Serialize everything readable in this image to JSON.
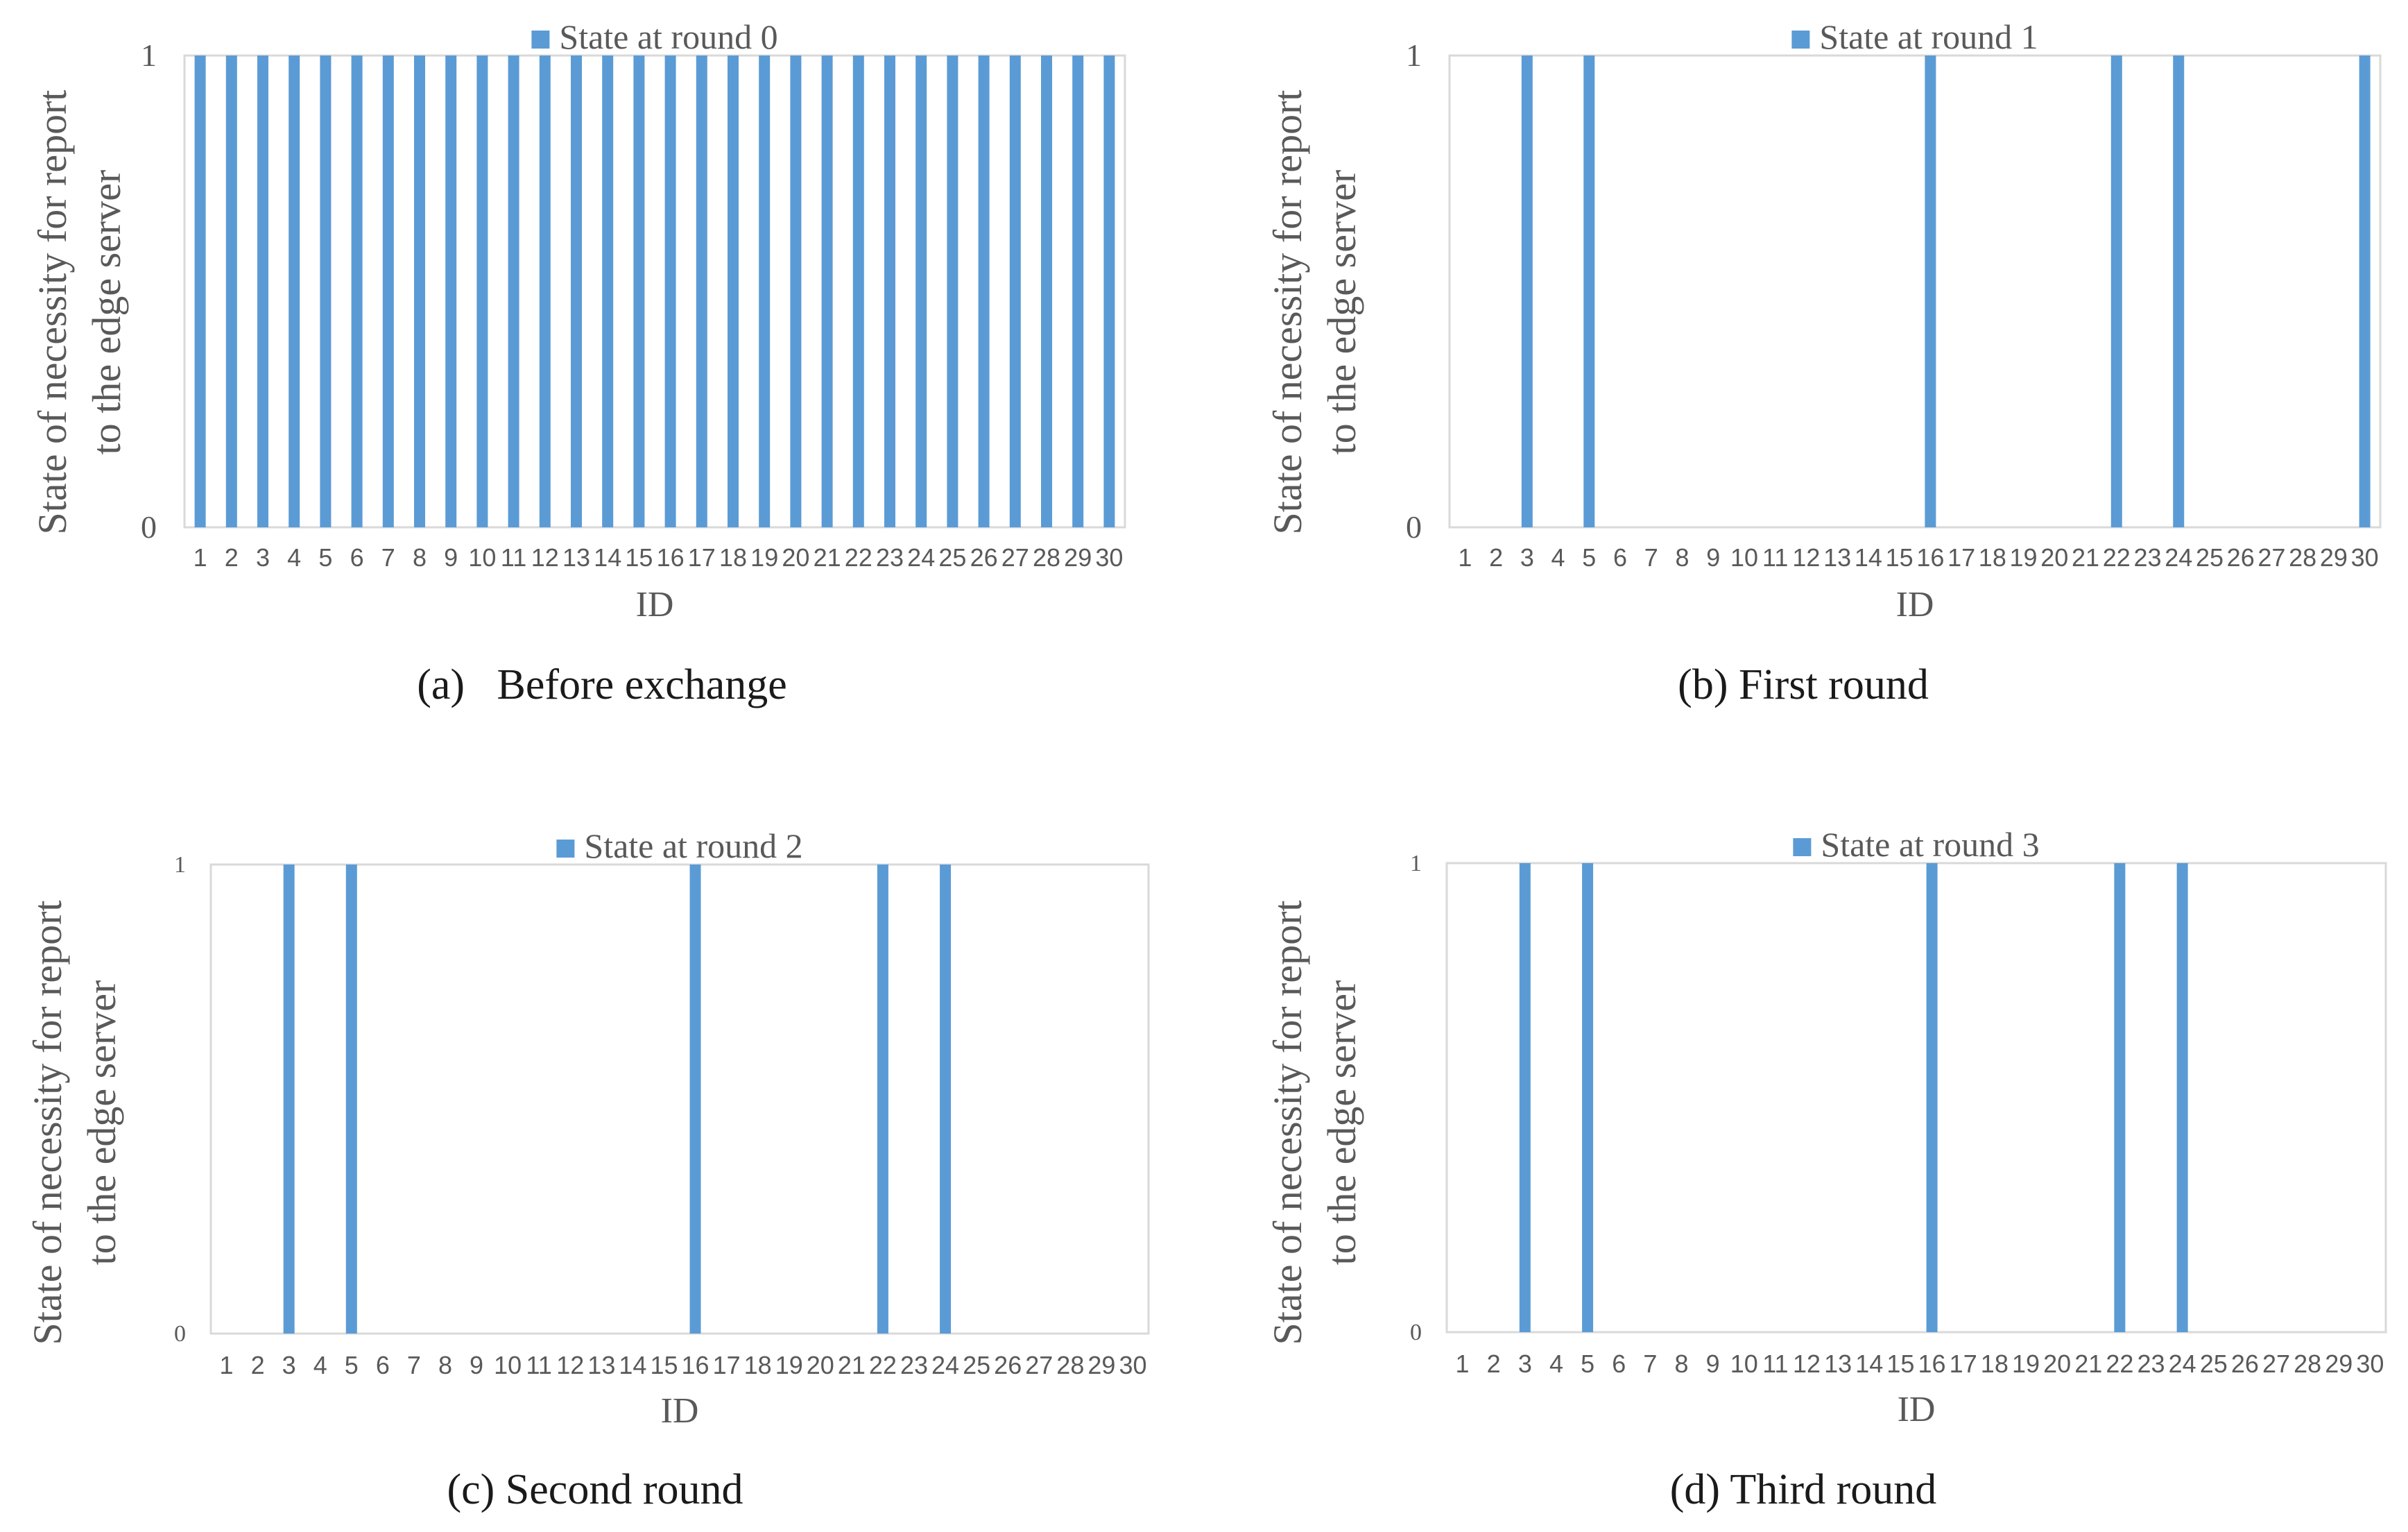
{
  "figure": {
    "bar_color": "#5b9bd5",
    "axis_color": "#d9d9d9",
    "text_color": "#595959",
    "caption_color": "#1a1a1a"
  },
  "chart_data": [
    {
      "type": "bar",
      "legend": "State at round 0",
      "legend_position": "top-center",
      "xlabel": "ID",
      "ylabel_lines": [
        "State of necessity for report",
        "to the edge server"
      ],
      "yticks": [
        "0",
        "1"
      ],
      "ylim": [
        0,
        1
      ],
      "categories": [
        "1",
        "2",
        "3",
        "4",
        "5",
        "6",
        "7",
        "8",
        "9",
        "10",
        "11",
        "12",
        "13",
        "14",
        "15",
        "16",
        "17",
        "18",
        "19",
        "20",
        "21",
        "22",
        "23",
        "24",
        "25",
        "26",
        "27",
        "28",
        "29",
        "30"
      ],
      "values": [
        1,
        1,
        1,
        1,
        1,
        1,
        1,
        1,
        1,
        1,
        1,
        1,
        1,
        1,
        1,
        1,
        1,
        1,
        1,
        1,
        1,
        1,
        1,
        1,
        1,
        1,
        1,
        1,
        1,
        1
      ],
      "caption": "(a)   Before exchange"
    },
    {
      "type": "bar",
      "legend": "State at round 1",
      "legend_position": "top-center",
      "xlabel": "ID",
      "ylabel_lines": [
        "State of necessity for report",
        "to the edge server"
      ],
      "yticks": [
        "0",
        "1"
      ],
      "ylim": [
        0,
        1
      ],
      "categories": [
        "1",
        "2",
        "3",
        "4",
        "5",
        "6",
        "7",
        "8",
        "9",
        "10",
        "11",
        "12",
        "13",
        "14",
        "15",
        "16",
        "17",
        "18",
        "19",
        "20",
        "21",
        "22",
        "23",
        "24",
        "25",
        "26",
        "27",
        "28",
        "29",
        "30"
      ],
      "values": [
        0,
        0,
        1,
        0,
        1,
        0,
        0,
        0,
        0,
        0,
        0,
        0,
        0,
        0,
        0,
        1,
        0,
        0,
        0,
        0,
        0,
        1,
        0,
        1,
        0,
        0,
        0,
        0,
        0,
        1
      ],
      "caption": "(b) First round"
    },
    {
      "type": "bar",
      "legend": "State at round 2",
      "legend_position": "top-center",
      "xlabel": "ID",
      "ylabel_lines": [
        "State of necessity for report",
        "to the edge server"
      ],
      "yticks": [
        "0",
        "1"
      ],
      "ylim": [
        0,
        1
      ],
      "categories": [
        "1",
        "2",
        "3",
        "4",
        "5",
        "6",
        "7",
        "8",
        "9",
        "10",
        "11",
        "12",
        "13",
        "14",
        "15",
        "16",
        "17",
        "18",
        "19",
        "20",
        "21",
        "22",
        "23",
        "24",
        "25",
        "26",
        "27",
        "28",
        "29",
        "30"
      ],
      "values": [
        0,
        0,
        1,
        0,
        1,
        0,
        0,
        0,
        0,
        0,
        0,
        0,
        0,
        0,
        0,
        1,
        0,
        0,
        0,
        0,
        0,
        1,
        0,
        1,
        0,
        0,
        0,
        0,
        0,
        0
      ],
      "caption": "(c) Second round"
    },
    {
      "type": "bar",
      "legend": "State at round 3",
      "legend_position": "top-center",
      "xlabel": "ID",
      "ylabel_lines": [
        "State of necessity for report",
        "to the edge server"
      ],
      "yticks": [
        "0",
        "1"
      ],
      "ylim": [
        0,
        1
      ],
      "categories": [
        "1",
        "2",
        "3",
        "4",
        "5",
        "6",
        "7",
        "8",
        "9",
        "10",
        "11",
        "12",
        "13",
        "14",
        "15",
        "16",
        "17",
        "18",
        "19",
        "20",
        "21",
        "22",
        "23",
        "24",
        "25",
        "26",
        "27",
        "28",
        "29",
        "30"
      ],
      "values": [
        0,
        0,
        1,
        0,
        1,
        0,
        0,
        0,
        0,
        0,
        0,
        0,
        0,
        0,
        0,
        1,
        0,
        0,
        0,
        0,
        0,
        1,
        0,
        1,
        0,
        0,
        0,
        0,
        0,
        0
      ],
      "caption": "(d) Third round"
    }
  ]
}
